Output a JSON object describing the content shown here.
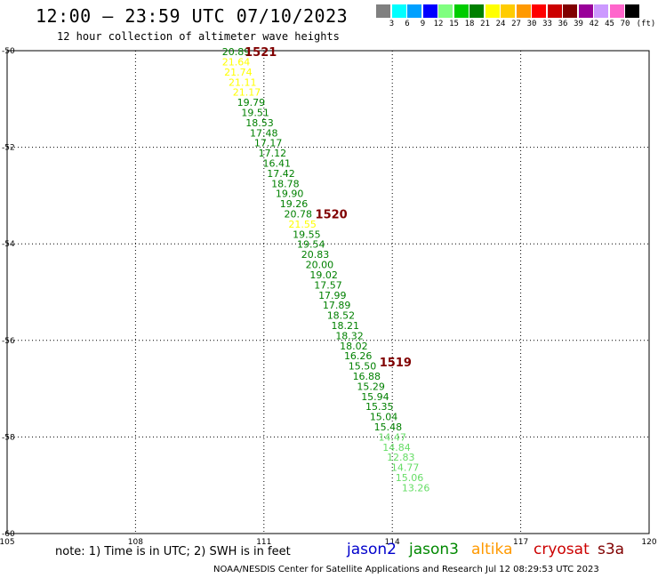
{
  "header": {
    "title": "12:00 – 23:59 UTC 07/10/2023",
    "subtitle": "12 hour collection of altimeter wave heights"
  },
  "legend": {
    "unit": "(ft)",
    "items": [
      {
        "label": "3",
        "color": "#808080"
      },
      {
        "label": "6",
        "color": "#00ffff"
      },
      {
        "label": "9",
        "color": "#00a0ff"
      },
      {
        "label": "12",
        "color": "#0000ff"
      },
      {
        "label": "15",
        "color": "#80ff80"
      },
      {
        "label": "18",
        "color": "#00cc00"
      },
      {
        "label": "21",
        "color": "#008000"
      },
      {
        "label": "24",
        "color": "#ffff00"
      },
      {
        "label": "27",
        "color": "#ffcc00"
      },
      {
        "label": "30",
        "color": "#ff9900"
      },
      {
        "label": "33",
        "color": "#ff0000"
      },
      {
        "label": "36",
        "color": "#cc0000"
      },
      {
        "label": "39",
        "color": "#800000"
      },
      {
        "label": "42",
        "color": "#990099"
      },
      {
        "label": "45",
        "color": "#cc99ff"
      },
      {
        "label": "70",
        "color": "#ff66cc"
      },
      {
        "label": "",
        "color": "#000000"
      }
    ]
  },
  "chart_data": {
    "type": "scatter",
    "xlim": [
      105,
      120
    ],
    "ylim": [
      -60,
      -50
    ],
    "x_ticks": [
      "105",
      "108",
      "111",
      "114",
      "117",
      "120"
    ],
    "y_ticks": [
      "-50",
      "-52",
      "-54",
      "-56",
      "-58",
      "-60"
    ],
    "grid": true,
    "points": [
      {
        "lon": 110.35,
        "lat": -50.02,
        "label": "20.89",
        "color": "#008000"
      },
      {
        "lon": 110.35,
        "lat": -50.23,
        "label": "21.64",
        "color": "#ffff00"
      },
      {
        "lon": 110.4,
        "lat": -50.44,
        "label": "21.74",
        "color": "#ffff00"
      },
      {
        "lon": 110.5,
        "lat": -50.65,
        "label": "21.11",
        "color": "#ffff00"
      },
      {
        "lon": 110.6,
        "lat": -50.86,
        "label": "21.17",
        "color": "#ffff00"
      },
      {
        "lon": 110.7,
        "lat": -51.07,
        "label": "19.79",
        "color": "#008000"
      },
      {
        "lon": 110.8,
        "lat": -51.28,
        "label": "19.51",
        "color": "#008000"
      },
      {
        "lon": 110.9,
        "lat": -51.49,
        "label": "18.53",
        "color": "#008000"
      },
      {
        "lon": 111.0,
        "lat": -51.7,
        "label": "17.48",
        "color": "#008000"
      },
      {
        "lon": 111.1,
        "lat": -51.91,
        "label": "17.17",
        "color": "#008000"
      },
      {
        "lon": 111.2,
        "lat": -52.12,
        "label": "17.12",
        "color": "#008000"
      },
      {
        "lon": 111.3,
        "lat": -52.33,
        "label": "16.41",
        "color": "#008000"
      },
      {
        "lon": 111.4,
        "lat": -52.54,
        "label": "17.42",
        "color": "#008000"
      },
      {
        "lon": 111.5,
        "lat": -52.75,
        "label": "18.78",
        "color": "#008000"
      },
      {
        "lon": 111.6,
        "lat": -52.96,
        "label": "19.90",
        "color": "#008000"
      },
      {
        "lon": 111.7,
        "lat": -53.17,
        "label": "19.26",
        "color": "#008000"
      },
      {
        "lon": 111.8,
        "lat": -53.38,
        "label": "20.78",
        "color": "#008000"
      },
      {
        "lon": 111.9,
        "lat": -53.59,
        "label": "21.55",
        "color": "#ffff00"
      },
      {
        "lon": 112.0,
        "lat": -53.8,
        "label": "19.55",
        "color": "#008000"
      },
      {
        "lon": 112.1,
        "lat": -54.01,
        "label": "19.54",
        "color": "#008000"
      },
      {
        "lon": 112.2,
        "lat": -54.22,
        "label": "20.83",
        "color": "#008000"
      },
      {
        "lon": 112.3,
        "lat": -54.43,
        "label": "20.00",
        "color": "#008000"
      },
      {
        "lon": 112.4,
        "lat": -54.64,
        "label": "19.02",
        "color": "#008000"
      },
      {
        "lon": 112.5,
        "lat": -54.85,
        "label": "17.57",
        "color": "#008000"
      },
      {
        "lon": 112.6,
        "lat": -55.06,
        "label": "17.99",
        "color": "#008000"
      },
      {
        "lon": 112.7,
        "lat": -55.27,
        "label": "17.89",
        "color": "#008000"
      },
      {
        "lon": 112.8,
        "lat": -55.48,
        "label": "18.52",
        "color": "#008000"
      },
      {
        "lon": 112.9,
        "lat": -55.69,
        "label": "18.21",
        "color": "#008000"
      },
      {
        "lon": 113.0,
        "lat": -55.9,
        "label": "18.32",
        "color": "#008000"
      },
      {
        "lon": 113.1,
        "lat": -56.11,
        "label": "18.02",
        "color": "#008000"
      },
      {
        "lon": 113.2,
        "lat": -56.32,
        "label": "16.26",
        "color": "#008000"
      },
      {
        "lon": 113.3,
        "lat": -56.53,
        "label": "15.50",
        "color": "#008000"
      },
      {
        "lon": 113.4,
        "lat": -56.74,
        "label": "16.88",
        "color": "#008000"
      },
      {
        "lon": 113.5,
        "lat": -56.95,
        "label": "15.29",
        "color": "#008000"
      },
      {
        "lon": 113.6,
        "lat": -57.16,
        "label": "15.94",
        "color": "#008000"
      },
      {
        "lon": 113.7,
        "lat": -57.37,
        "label": "15.35",
        "color": "#008000"
      },
      {
        "lon": 113.8,
        "lat": -57.58,
        "label": "15.04",
        "color": "#008000"
      },
      {
        "lon": 113.9,
        "lat": -57.79,
        "label": "15.48",
        "color": "#008000"
      },
      {
        "lon": 114.0,
        "lat": -58.0,
        "label": "14.47",
        "color": "#66dd66"
      },
      {
        "lon": 114.1,
        "lat": -58.21,
        "label": "14.84",
        "color": "#66dd66"
      },
      {
        "lon": 114.2,
        "lat": -58.42,
        "label": "12.83",
        "color": "#66dd66"
      },
      {
        "lon": 114.3,
        "lat": -58.63,
        "label": "14.77",
        "color": "#66dd66"
      },
      {
        "lon": 114.4,
        "lat": -58.84,
        "label": "15.06",
        "color": "#66dd66"
      },
      {
        "lon": 114.55,
        "lat": -59.05,
        "label": "13.26",
        "color": "#66dd66"
      }
    ],
    "annotations": [
      {
        "lon": 110.55,
        "lat": -50.02,
        "text": "1521",
        "color": "#800000"
      },
      {
        "lon": 112.2,
        "lat": -53.38,
        "text": "1520",
        "color": "#800000"
      },
      {
        "lon": 113.7,
        "lat": -56.45,
        "text": "1519",
        "color": "#800000"
      }
    ]
  },
  "note": "note:  1) Time is in UTC;  2) SWH is in feet",
  "satellites": [
    {
      "name": "jason2",
      "color": "#0000cc"
    },
    {
      "name": "jason3",
      "color": "#008800"
    },
    {
      "name": "altika",
      "color": "#ff9900"
    },
    {
      "name": "cryosat",
      "color": "#cc0000"
    },
    {
      "name": "s3a",
      "color": "#800000"
    }
  ],
  "footer": "NOAA/NESDIS Center for Satellite Applications and Research     Jul 12 08:29:53 UTC 2023"
}
